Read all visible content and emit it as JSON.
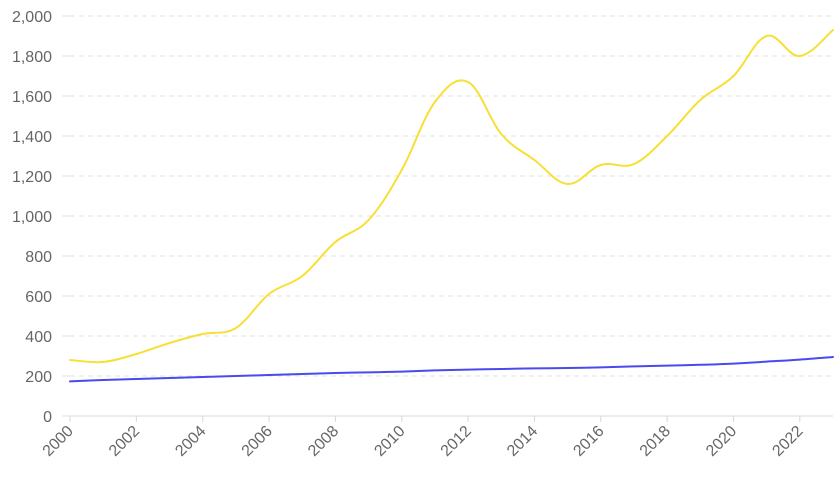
{
  "chart_data": {
    "type": "line",
    "title": "",
    "xlabel": "",
    "ylabel": "",
    "x": [
      2000,
      2001,
      2002,
      2003,
      2004,
      2005,
      2006,
      2007,
      2008,
      2009,
      2010,
      2011,
      2012,
      2013,
      2014,
      2015,
      2016,
      2017,
      2018,
      2019,
      2020,
      2021,
      2022,
      2023
    ],
    "x_tick_labels": [
      "2000",
      "2002",
      "2004",
      "2006",
      "2008",
      "2010",
      "2012",
      "2014",
      "2016",
      "2018",
      "2020",
      "2022"
    ],
    "y_tick_labels": [
      "0",
      "200",
      "400",
      "600",
      "800",
      "1,000",
      "1,200",
      "1,400",
      "1,600",
      "1,800",
      "2,000"
    ],
    "ylim": [
      0,
      2000
    ],
    "y_ticks": [
      0,
      200,
      400,
      600,
      800,
      1000,
      1200,
      1400,
      1600,
      1800,
      2000
    ],
    "grid": true,
    "legend": "none",
    "series": [
      {
        "color": "#f7df36",
        "values": [
          280,
          270,
          310,
          365,
          410,
          440,
          610,
          700,
          870,
          980,
          1230,
          1570,
          1670,
          1410,
          1280,
          1160,
          1255,
          1260,
          1400,
          1580,
          1700,
          1900,
          1800,
          1930
        ]
      },
      {
        "color": "#4a4aee",
        "values": [
          173,
          180,
          185,
          190,
          195,
          200,
          205,
          210,
          215,
          218,
          222,
          228,
          232,
          235,
          238,
          240,
          243,
          248,
          252,
          256,
          262,
          272,
          282,
          295
        ]
      }
    ]
  }
}
